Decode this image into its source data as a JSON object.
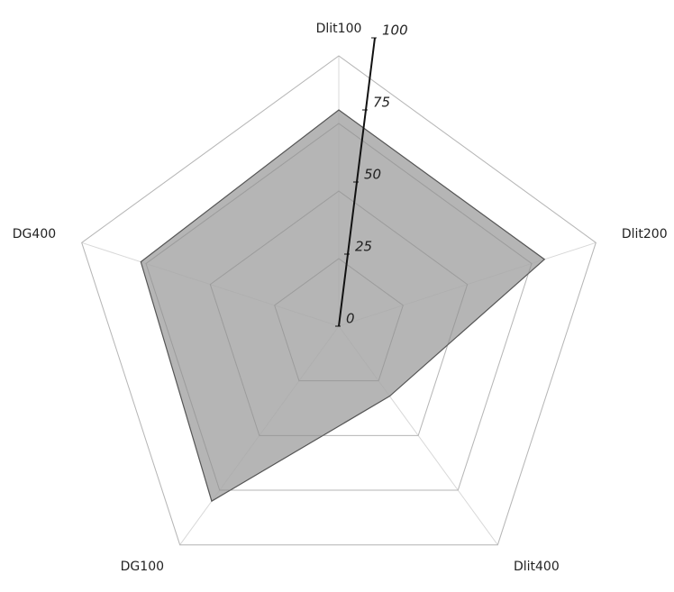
{
  "chart_data": {
    "type": "radar",
    "categories": [
      "Dlit100",
      "Dlit200",
      "Dlit400",
      "DG100",
      "DG400"
    ],
    "values": [
      80,
      80,
      32,
      80,
      77
    ],
    "color": "#a8a8a8",
    "rlim": [
      0,
      100
    ],
    "rticks": [
      0,
      25,
      50,
      75,
      100
    ],
    "grid": true
  }
}
